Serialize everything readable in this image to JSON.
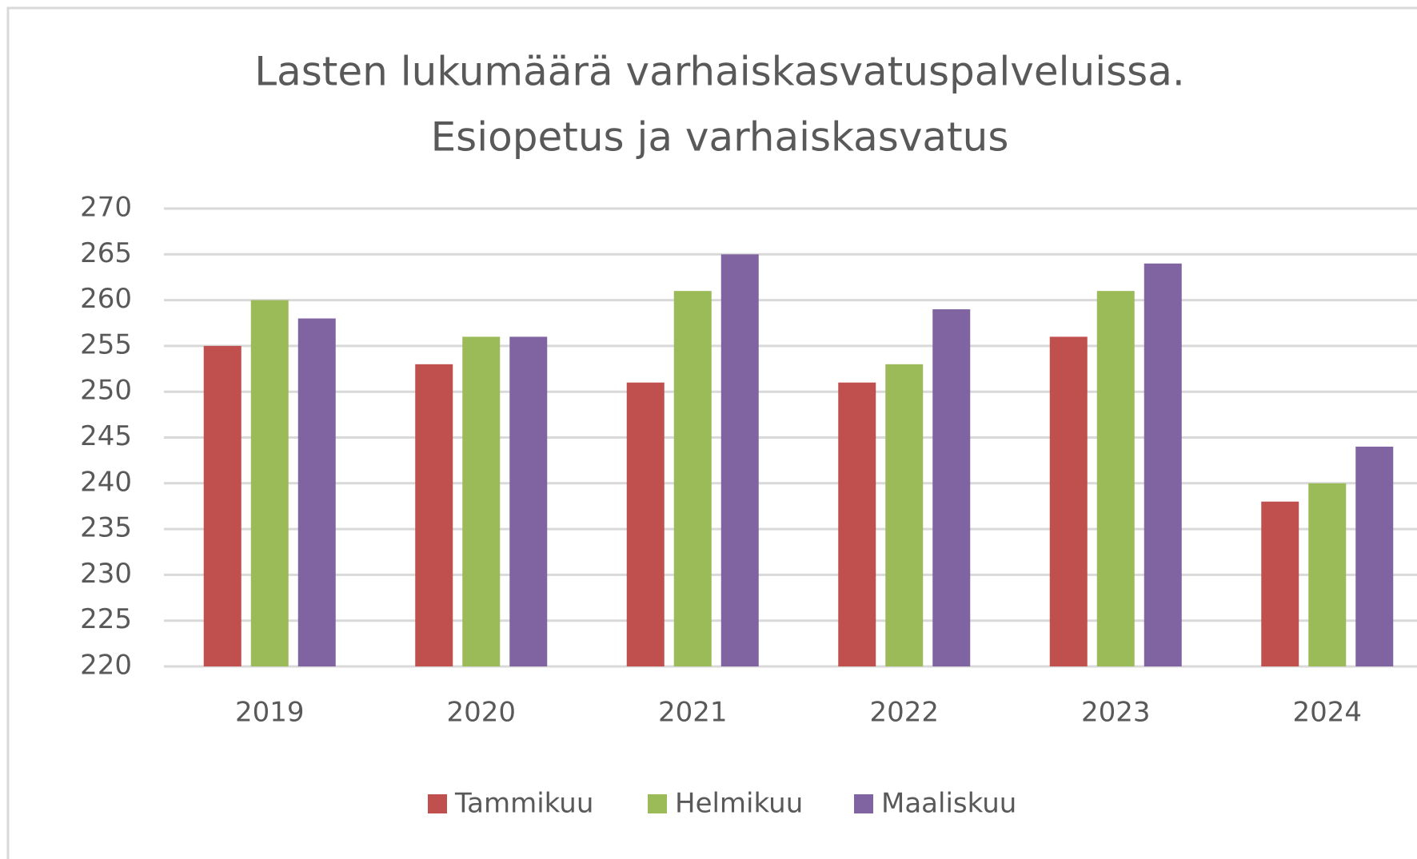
{
  "chart_data": {
    "type": "bar",
    "title": [
      "Lasten lukumäärä varhaiskasvatuspalveluissa.",
      "Esiopetus ja varhaiskasvatus"
    ],
    "categories": [
      "2019",
      "2020",
      "2021",
      "2022",
      "2023",
      "2024"
    ],
    "series": [
      {
        "name": "Tammikuu",
        "color": "#c0504d",
        "values": [
          255,
          253,
          251,
          251,
          256,
          238
        ]
      },
      {
        "name": "Helmikuu",
        "color": "#9bbb59",
        "values": [
          260,
          256,
          261,
          253,
          261,
          240
        ]
      },
      {
        "name": "Maaliskuu",
        "color": "#8064a2",
        "values": [
          258,
          256,
          265,
          259,
          264,
          244
        ]
      }
    ],
    "ylim": [
      220,
      270
    ],
    "yticks": [
      220,
      225,
      230,
      235,
      240,
      245,
      250,
      255,
      260,
      265,
      270
    ],
    "grid": true,
    "legend": "bottom"
  }
}
